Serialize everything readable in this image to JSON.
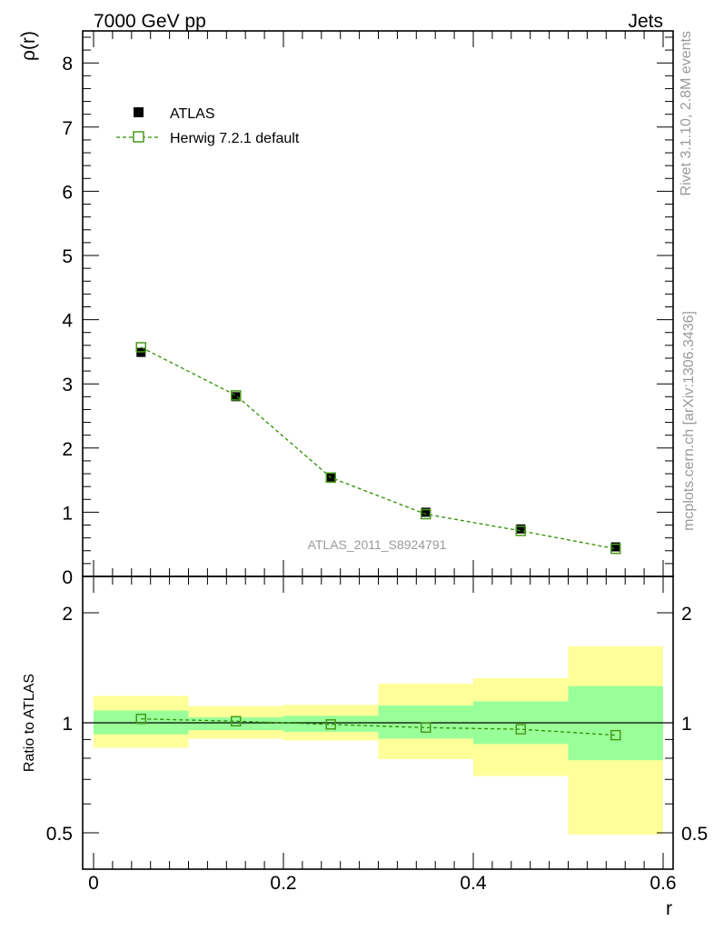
{
  "header": {
    "left": "7000 GeV pp",
    "right": "Jets"
  },
  "side_labels": {
    "rivet": "Rivet 3.1.10,  2.8M events",
    "mcplots": "mcplots.cern.ch [arXiv:1306.3436]"
  },
  "analysis_tag": "ATLAS_2011_S8924791",
  "colors": {
    "mc_line": "#2f8f00",
    "mc_marker": "#4a9a1a",
    "band_inner": "#99ff99",
    "band_outer": "#ffff99",
    "data_marker": "#000000"
  },
  "chart_data": [
    {
      "type": "scatter",
      "panel": "main",
      "ylabel": "ρ(r)",
      "xlim": [
        0,
        0.6
      ],
      "ylim": [
        0,
        8.5
      ],
      "yticks": [
        0,
        1,
        2,
        3,
        4,
        5,
        6,
        7,
        8
      ],
      "legend": {
        "placement": "top-left",
        "entries": [
          "ATLAS",
          "Herwig 7.2.1 default"
        ]
      },
      "series": [
        {
          "name": "ATLAS",
          "style": "filled-square",
          "x": [
            0.05,
            0.15,
            0.25,
            0.35,
            0.45,
            0.55
          ],
          "xerr": [
            0.05,
            0.05,
            0.05,
            0.05,
            0.05,
            0.05
          ],
          "y": [
            3.49,
            2.8,
            1.55,
            1.0,
            0.74,
            0.46
          ],
          "yerr": [
            0.05,
            0.04,
            0.03,
            0.03,
            0.03,
            0.03
          ]
        },
        {
          "name": "Herwig 7.2.1 default",
          "style": "open-square-dashed",
          "x": [
            0.05,
            0.15,
            0.25,
            0.35,
            0.45,
            0.55
          ],
          "y": [
            3.57,
            2.82,
            1.54,
            0.97,
            0.71,
            0.43
          ]
        }
      ]
    },
    {
      "type": "scatter",
      "panel": "ratio",
      "xlabel": "r",
      "ylabel": "Ratio to ATLAS",
      "xlim": [
        0,
        0.6
      ],
      "ylim": [
        0.4,
        2.3
      ],
      "xticks": [
        0,
        0.2,
        0.4,
        0.6
      ],
      "yticks": [
        0.5,
        1,
        2
      ],
      "bands": {
        "x_edges": [
          0,
          0.1,
          0.2,
          0.3,
          0.4,
          0.5,
          0.6
        ],
        "inner_low": [
          0.93,
          0.955,
          0.945,
          0.905,
          0.875,
          0.79
        ],
        "inner_high": [
          1.08,
          1.035,
          1.045,
          1.115,
          1.145,
          1.26
        ],
        "outer_low": [
          0.855,
          0.905,
          0.895,
          0.795,
          0.715,
          0.495
        ],
        "outer_high": [
          1.185,
          1.11,
          1.12,
          1.28,
          1.325,
          1.62
        ]
      },
      "series": [
        {
          "name": "Herwig 7.2.1 default",
          "style": "open-square-dashed",
          "x": [
            0.05,
            0.15,
            0.25,
            0.35,
            0.45,
            0.55
          ],
          "y": [
            1.025,
            1.01,
            0.99,
            0.97,
            0.96,
            0.925
          ]
        }
      ]
    }
  ]
}
